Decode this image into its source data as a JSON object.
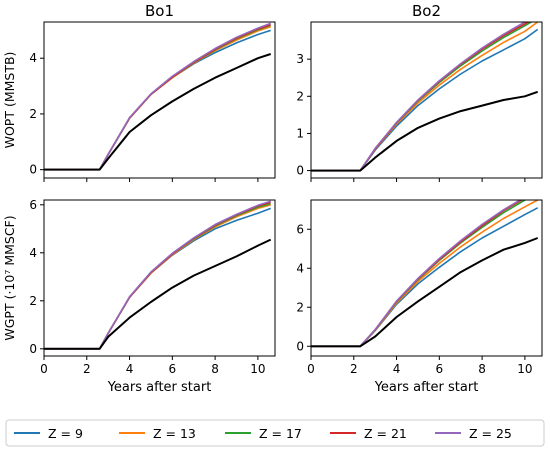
{
  "chart_data": {
    "type": "line",
    "column_titles": [
      "Bo1",
      "Bo2"
    ],
    "row_ylabels": [
      "WOPT (MMSTB)",
      "WGPT (·10⁷ MMSCF)"
    ],
    "xlabel": "Years after start",
    "xlim": [
      0,
      10.8
    ],
    "xticks": [
      0,
      2,
      4,
      6,
      8,
      10
    ],
    "legend": {
      "placement": "bottom",
      "entries": [
        "Z = 9",
        "Z = 13",
        "Z = 17",
        "Z = 21",
        "Z = 25"
      ]
    },
    "colors": {
      "Z9": "#1f77b4",
      "Z13": "#ff7f0e",
      "Z17": "#2ca02c",
      "Z21": "#d62728",
      "Z25": "#9467bd",
      "black": "#000000"
    },
    "charts": [
      {
        "panel": "Bo1-WOPT",
        "ylim": [
          -0.3,
          5.3
        ],
        "yticks": [
          0,
          2,
          4
        ],
        "x": [
          0,
          2.6,
          3,
          4,
          5,
          6,
          7,
          8,
          9,
          10,
          10.6
        ],
        "series": [
          {
            "name": "Z = 9",
            "color": "#1f77b4",
            "values": [
              0,
              0,
              0.55,
              1.85,
              2.7,
              3.3,
              3.8,
              4.2,
              4.55,
              4.85,
              5.0
            ]
          },
          {
            "name": "Z = 13",
            "color": "#ff7f0e",
            "values": [
              0,
              0,
              0.55,
              1.85,
              2.7,
              3.3,
              3.82,
              4.27,
              4.65,
              4.98,
              5.13
            ]
          },
          {
            "name": "Z = 17",
            "color": "#2ca02c",
            "values": [
              0,
              0,
              0.55,
              1.85,
              2.7,
              3.32,
              3.84,
              4.3,
              4.7,
              5.02,
              5.18
            ]
          },
          {
            "name": "Z = 21",
            "color": "#d62728",
            "values": [
              0,
              0,
              0.55,
              1.85,
              2.7,
              3.32,
              3.85,
              4.32,
              4.72,
              5.05,
              5.2
            ]
          },
          {
            "name": "Z = 25",
            "color": "#9467bd",
            "values": [
              0,
              0,
              0.55,
              1.87,
              2.72,
              3.35,
              3.88,
              4.35,
              4.75,
              5.08,
              5.25
            ]
          },
          {
            "color": "#000000",
            "values": [
              0,
              0,
              0.4,
              1.35,
              1.95,
              2.45,
              2.9,
              3.3,
              3.65,
              4.0,
              4.15
            ]
          }
        ]
      },
      {
        "panel": "Bo2-WOPT",
        "ylim": [
          -0.2,
          4.0
        ],
        "yticks": [
          0,
          1,
          2,
          3
        ],
        "x": [
          0,
          2.3,
          3,
          4,
          5,
          6,
          7,
          8,
          9,
          10,
          10.6
        ],
        "series": [
          {
            "name": "Z = 9",
            "color": "#1f77b4",
            "values": [
              0,
              0,
              0.55,
              1.2,
              1.75,
              2.2,
              2.6,
              2.95,
              3.25,
              3.55,
              3.8
            ]
          },
          {
            "name": "Z = 13",
            "color": "#ff7f0e",
            "values": [
              0,
              0,
              0.57,
              1.25,
              1.82,
              2.3,
              2.73,
              3.1,
              3.45,
              3.75,
              4.0
            ]
          },
          {
            "name": "Z = 17",
            "color": "#2ca02c",
            "values": [
              0,
              0,
              0.58,
              1.28,
              1.87,
              2.37,
              2.82,
              3.22,
              3.58,
              3.9,
              4.1
            ]
          },
          {
            "name": "Z = 21",
            "color": "#d62728",
            "values": [
              0,
              0,
              0.58,
              1.29,
              1.89,
              2.4,
              2.86,
              3.27,
              3.63,
              3.95,
              4.15
            ]
          },
          {
            "name": "Z = 25",
            "color": "#9467bd",
            "values": [
              0,
              0,
              0.6,
              1.3,
              1.9,
              2.42,
              2.88,
              3.3,
              3.67,
              4.0,
              4.2
            ]
          },
          {
            "color": "#000000",
            "values": [
              0,
              0,
              0.35,
              0.8,
              1.15,
              1.4,
              1.6,
              1.75,
              1.9,
              2.0,
              2.12
            ]
          }
        ]
      },
      {
        "panel": "Bo1-WGPT",
        "ylim": [
          -0.3,
          6.2
        ],
        "yticks": [
          0,
          2,
          4,
          6
        ],
        "x": [
          0,
          2.6,
          3,
          4,
          5,
          6,
          7,
          8,
          9,
          10,
          10.6
        ],
        "series": [
          {
            "name": "Z = 9",
            "color": "#1f77b4",
            "values": [
              0,
              0,
              0.65,
              2.15,
              3.15,
              3.9,
              4.5,
              5.0,
              5.35,
              5.65,
              5.85
            ]
          },
          {
            "name": "Z = 13",
            "color": "#ff7f0e",
            "values": [
              0,
              0,
              0.65,
              2.15,
              3.15,
              3.92,
              4.55,
              5.08,
              5.5,
              5.85,
              6.0
            ]
          },
          {
            "name": "Z = 17",
            "color": "#2ca02c",
            "values": [
              0,
              0,
              0.65,
              2.15,
              3.17,
              3.95,
              4.58,
              5.12,
              5.55,
              5.9,
              6.05
            ]
          },
          {
            "name": "Z = 21",
            "color": "#d62728",
            "values": [
              0,
              0,
              0.65,
              2.15,
              3.17,
              3.95,
              4.6,
              5.15,
              5.58,
              5.95,
              6.1
            ]
          },
          {
            "name": "Z = 25",
            "color": "#9467bd",
            "values": [
              0,
              0,
              0.66,
              2.17,
              3.2,
              3.98,
              4.62,
              5.18,
              5.6,
              5.98,
              6.15
            ]
          },
          {
            "color": "#000000",
            "values": [
              0,
              0,
              0.5,
              1.3,
              1.95,
              2.55,
              3.05,
              3.45,
              3.85,
              4.3,
              4.55
            ]
          }
        ]
      },
      {
        "panel": "Bo2-WGPT",
        "ylim": [
          -0.5,
          7.5
        ],
        "yticks": [
          0,
          2,
          4,
          6
        ],
        "x": [
          0,
          2.3,
          3,
          4,
          5,
          6,
          7,
          8,
          9,
          10,
          10.6
        ],
        "series": [
          {
            "name": "Z = 9",
            "color": "#1f77b4",
            "values": [
              0,
              0,
              0.8,
              2.15,
              3.2,
              4.05,
              4.85,
              5.55,
              6.15,
              6.75,
              7.1
            ]
          },
          {
            "name": "Z = 13",
            "color": "#ff7f0e",
            "values": [
              0,
              0,
              0.82,
              2.22,
              3.32,
              4.25,
              5.1,
              5.85,
              6.55,
              7.15,
              7.5
            ]
          },
          {
            "name": "Z = 17",
            "color": "#2ca02c",
            "values": [
              0,
              0,
              0.84,
              2.28,
              3.42,
              4.4,
              5.3,
              6.1,
              6.85,
              7.5,
              7.7
            ]
          },
          {
            "name": "Z = 21",
            "color": "#d62728",
            "values": [
              0,
              0,
              0.85,
              2.3,
              3.45,
              4.45,
              5.35,
              6.18,
              6.95,
              7.6,
              7.8
            ]
          },
          {
            "name": "Z = 25",
            "color": "#9467bd",
            "values": [
              0,
              0,
              0.86,
              2.32,
              3.48,
              4.5,
              5.42,
              6.25,
              7.0,
              7.65,
              7.85
            ]
          },
          {
            "color": "#000000",
            "values": [
              0,
              0,
              0.5,
              1.5,
              2.3,
              3.05,
              3.8,
              4.4,
              4.95,
              5.3,
              5.55
            ]
          }
        ]
      }
    ]
  }
}
